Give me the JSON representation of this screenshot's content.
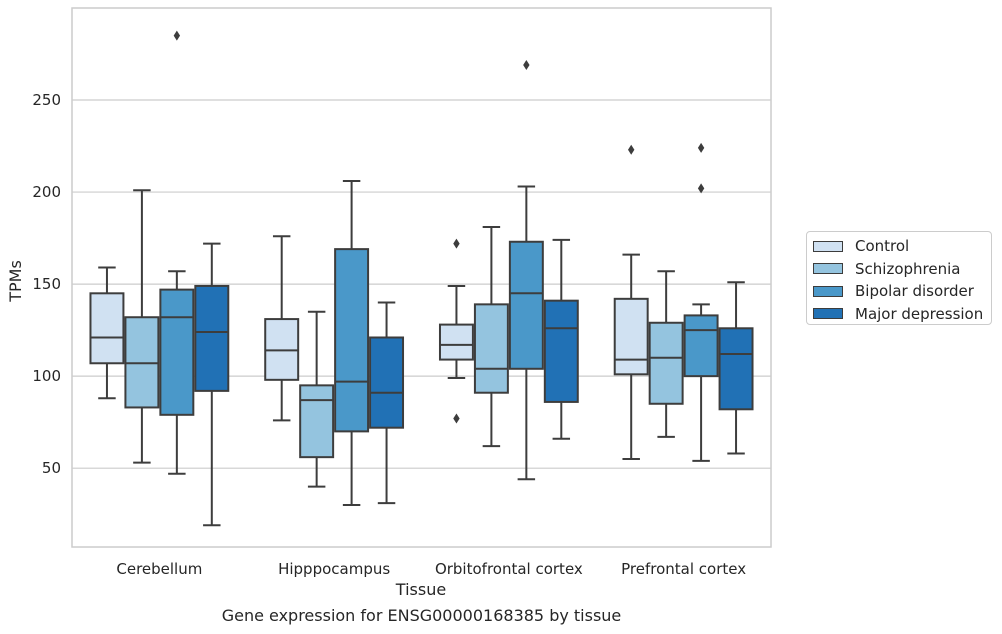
{
  "chart_data": {
    "type": "box",
    "xlabel": "Tissue",
    "ylabel": "TPMs",
    "ylim": [
      6,
      298
    ],
    "yticks": [
      50,
      100,
      150,
      200,
      250
    ],
    "grid": "horizontal",
    "legend_position": "right",
    "categories": [
      "Cerebellum",
      "Hipppocampus",
      "Orbitofrontal cortex",
      "Prefrontal cortex"
    ],
    "series": [
      {
        "name": "Control",
        "color": "#d0e1f2",
        "boxes": [
          {
            "whisker_low": 88,
            "q1": 107,
            "median": 121,
            "q3": 145,
            "whisker_high": 159,
            "outliers": []
          },
          {
            "whisker_low": 76,
            "q1": 98,
            "median": 114,
            "q3": 131,
            "whisker_high": 176,
            "outliers": []
          },
          {
            "whisker_low": 99,
            "q1": 109,
            "median": 117,
            "q3": 128,
            "whisker_high": 149,
            "outliers": [
              172,
              77
            ]
          },
          {
            "whisker_low": 55,
            "q1": 101,
            "median": 109,
            "q3": 142,
            "whisker_high": 166,
            "outliers": [
              223
            ]
          }
        ]
      },
      {
        "name": "Schizophrenia",
        "color": "#94c4df",
        "boxes": [
          {
            "whisker_low": 53,
            "q1": 83,
            "median": 107,
            "q3": 132,
            "whisker_high": 201,
            "outliers": []
          },
          {
            "whisker_low": 40,
            "q1": 56,
            "median": 87,
            "q3": 95,
            "whisker_high": 135,
            "outliers": []
          },
          {
            "whisker_low": 62,
            "q1": 91,
            "median": 104,
            "q3": 139,
            "whisker_high": 181,
            "outliers": []
          },
          {
            "whisker_low": 67,
            "q1": 85,
            "median": 110,
            "q3": 129,
            "whisker_high": 157,
            "outliers": []
          }
        ]
      },
      {
        "name": "Bipolar disorder",
        "color": "#4a98c9",
        "boxes": [
          {
            "whisker_low": 47,
            "q1": 79,
            "median": 132,
            "q3": 147,
            "whisker_high": 157,
            "outliers": [
              285
            ]
          },
          {
            "whisker_low": 30,
            "q1": 70,
            "median": 97,
            "q3": 169,
            "whisker_high": 206,
            "outliers": []
          },
          {
            "whisker_low": 44,
            "q1": 104,
            "median": 145,
            "q3": 173,
            "whisker_high": 203,
            "outliers": [
              269
            ]
          },
          {
            "whisker_low": 54,
            "q1": 100,
            "median": 125,
            "q3": 133,
            "whisker_high": 139,
            "outliers": [
              224,
              202
            ]
          }
        ]
      },
      {
        "name": "Major depression",
        "color": "#2171b5",
        "boxes": [
          {
            "whisker_low": 19,
            "q1": 92,
            "median": 124,
            "q3": 149,
            "whisker_high": 172,
            "outliers": []
          },
          {
            "whisker_low": 31,
            "q1": 72,
            "median": 91,
            "q3": 121,
            "whisker_high": 140,
            "outliers": []
          },
          {
            "whisker_low": 66,
            "q1": 86,
            "median": 126,
            "q3": 141,
            "whisker_high": 174,
            "outliers": []
          },
          {
            "whisker_low": 58,
            "q1": 82,
            "median": 112,
            "q3": 126,
            "whisker_high": 151,
            "outliers": []
          }
        ]
      }
    ]
  },
  "caption": "Gene expression for ENSG00000168385 by tissue"
}
